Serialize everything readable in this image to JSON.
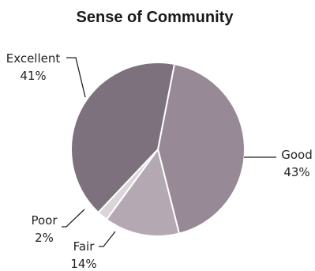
{
  "chart_data": {
    "type": "pie",
    "title": "Sense of Community",
    "slices": [
      {
        "label": "Good",
        "value": 43,
        "display": "43%",
        "color": "#978a96"
      },
      {
        "label": "Fair",
        "value": 14,
        "display": "14%",
        "color": "#b4a9b3"
      },
      {
        "label": "Poor",
        "value": 2,
        "display": "2%",
        "color": "#dbd5da"
      },
      {
        "label": "Excellent",
        "value": 41,
        "display": "41%",
        "color": "#7c717d"
      }
    ]
  }
}
